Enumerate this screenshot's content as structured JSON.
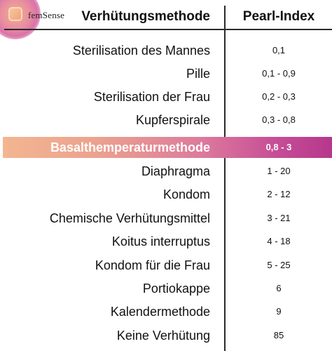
{
  "brand": {
    "name": "femSense",
    "colors": {
      "highlight_start": "#f3b690",
      "highlight_end": "#b6378d",
      "logo_accent": "#d973a8"
    },
    "logo_icon": "femsense-logo-icon"
  },
  "header": {
    "method_label": "Verhütungsmethode",
    "index_label": "Pearl-Index"
  },
  "rows": [
    {
      "method": "Sterilisation des Mannes",
      "index": "0,1"
    },
    {
      "method": "Pille",
      "index": "0,1 - 0,9"
    },
    {
      "method": "Sterilisation der Frau",
      "index": "0,2 - 0,3"
    },
    {
      "method": "Kupferspirale",
      "index": "0,3 - 0,8"
    },
    {
      "method": "Basalthemperaturmethode",
      "index": "0,8 - 3",
      "highlighted": true
    },
    {
      "method": "Diaphragma",
      "index": "1 - 20"
    },
    {
      "method": "Kondom",
      "index": "2 - 12"
    },
    {
      "method": "Chemische Verhütungsmittel",
      "index": "3 - 21"
    },
    {
      "method": "Koitus interruptus",
      "index": "4 - 18"
    },
    {
      "method": "Kondom für die Frau",
      "index": "5 - 25"
    },
    {
      "method": "Portiokappe",
      "index": "6"
    },
    {
      "method": "Kalendermethode",
      "index": "9"
    },
    {
      "method": "Keine Verhütung",
      "index": "85"
    }
  ]
}
